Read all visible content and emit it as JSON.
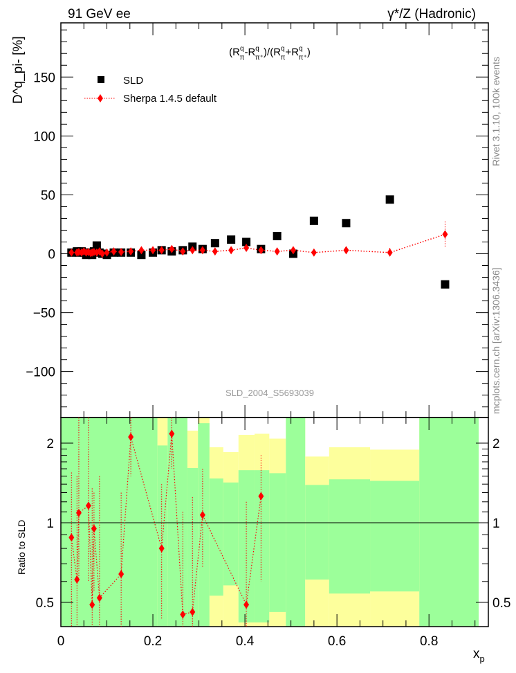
{
  "header": {
    "left": "91 GeV ee",
    "right": "γ*/Z (Hadronic)"
  },
  "side": {
    "rivet": "Rivet 3.1.10, 100k events",
    "mcplots": "mcplots.cern.ch [arXiv:1306.3436]"
  },
  "watermark": "SLD_2004_S5693039",
  "chart_data": [
    {
      "type": "scatter",
      "title": "(R^q_π-R^q_π+)/(R^q_π+R^q_π+)",
      "ylabel": "D^q_pi- [%]",
      "xlabel": "x_p",
      "xlim": [
        0,
        0.929
      ],
      "ylim": [
        -139,
        196
      ],
      "yticks": [
        -100,
        -50,
        0,
        50,
        100,
        150
      ],
      "yticklabels": [
        "−100",
        "−50",
        "0",
        "50",
        "100",
        "150"
      ],
      "legend": {
        "position": "top-left",
        "entries": [
          "SLD",
          "Sherpa 1.4.5 default"
        ]
      },
      "series": [
        {
          "name": "SLD",
          "color": "#000000",
          "marker": "square",
          "x": [
            0.023,
            0.035,
            0.039,
            0.045,
            0.05,
            0.055,
            0.06,
            0.065,
            0.068,
            0.072,
            0.078,
            0.084,
            0.09,
            0.1,
            0.115,
            0.131,
            0.152,
            0.175,
            0.2,
            0.219,
            0.241,
            0.265,
            0.286,
            0.308,
            0.335,
            0.37,
            0.403,
            0.435,
            0.47,
            0.505,
            0.55,
            0.62,
            0.715,
            0.835
          ],
          "y": [
            1,
            2,
            1,
            2,
            1,
            -1,
            1,
            0,
            -1,
            2,
            7,
            1,
            0,
            -1,
            1,
            1,
            1,
            -1,
            1,
            3,
            2,
            3,
            6,
            4,
            9,
            12,
            10,
            4,
            15,
            0,
            28,
            26,
            46,
            -26
          ]
        },
        {
          "name": "Sherpa 1.4.5 default",
          "color": "#ff0000",
          "marker": "diamond",
          "x": [
            0.023,
            0.035,
            0.039,
            0.045,
            0.05,
            0.055,
            0.06,
            0.065,
            0.068,
            0.072,
            0.078,
            0.084,
            0.09,
            0.1,
            0.115,
            0.131,
            0.152,
            0.175,
            0.2,
            0.219,
            0.241,
            0.265,
            0.286,
            0.308,
            0.335,
            0.37,
            0.403,
            0.435,
            0.47,
            0.505,
            0.55,
            0.62,
            0.715,
            0.835
          ],
          "y": [
            1,
            1,
            1.5,
            1,
            2,
            1,
            1.5,
            0.5,
            1,
            1.5,
            1,
            2,
            0,
            1,
            2,
            1.5,
            2,
            3,
            3,
            3,
            4,
            2,
            3,
            3,
            2,
            3,
            5,
            3,
            2,
            3,
            1,
            3,
            1,
            16.5
          ],
          "yerr": [
            1,
            1,
            1,
            1,
            1,
            1,
            1,
            1,
            1,
            1,
            1,
            1,
            1,
            1,
            1,
            1,
            1,
            1,
            1,
            1,
            1,
            1,
            1,
            1,
            1,
            1,
            1,
            1,
            1,
            1.5,
            2,
            3,
            4,
            11
          ]
        }
      ]
    },
    {
      "type": "scatter",
      "ylabel": "Ratio to SLD",
      "yscale": "log",
      "ylim": [
        0.405,
        2.5
      ],
      "yticks": [
        0.5,
        1,
        2
      ],
      "yticklabels": [
        "0.5",
        "1",
        "2"
      ],
      "xticks": [
        0,
        0.2,
        0.4,
        0.6,
        0.8
      ],
      "xticklabels": [
        "0",
        "0.2",
        "0.4",
        "0.6",
        "0.8"
      ],
      "xlabel": "x_p",
      "bands": [
        {
          "x": [
            0,
            0.21
          ],
          "y2": [
            0.405,
            2.5
          ],
          "y1": [
            0.405,
            2.5
          ]
        },
        {
          "x": [
            0.21,
            0.232
          ],
          "y2": [
            0.405,
            2.5
          ],
          "y1": [
            0.405,
            1.96
          ]
        },
        {
          "x": [
            0.232,
            0.275
          ],
          "y2": [
            0.405,
            2.5
          ],
          "y1": [
            0.405,
            2.5
          ]
        },
        {
          "x": [
            0.275,
            0.298
          ],
          "y2": [
            0.405,
            2.23
          ],
          "y1": [
            0.405,
            1.61
          ]
        },
        {
          "x": [
            0.298,
            0.323
          ],
          "y2": [
            0.405,
            2.5
          ],
          "y1": [
            0.405,
            2.38
          ]
        },
        {
          "x": [
            0.323,
            0.353
          ],
          "y2": [
            0.405,
            1.93
          ],
          "y1": [
            0.53,
            1.47
          ]
        },
        {
          "x": [
            0.353,
            0.386
          ],
          "y2": [
            0.405,
            1.85
          ],
          "y1": [
            0.58,
            1.42
          ]
        },
        {
          "x": [
            0.386,
            0.421
          ],
          "y2": [
            0.405,
            2.15
          ],
          "y1": [
            0.42,
            1.58
          ]
        },
        {
          "x": [
            0.421,
            0.453
          ],
          "y2": [
            0.405,
            2.17
          ],
          "y1": [
            0.42,
            1.58
          ]
        },
        {
          "x": [
            0.453,
            0.489
          ],
          "y2": [
            0.405,
            2.08
          ],
          "y1": [
            0.46,
            1.54
          ]
        },
        {
          "x": [
            0.489,
            0.531
          ],
          "y2": [
            0.405,
            2.5
          ],
          "y1": [
            0.405,
            2.5
          ]
        },
        {
          "x": [
            0.531,
            0.583
          ],
          "y2": [
            0.405,
            1.78
          ],
          "y1": [
            0.61,
            1.39
          ]
        },
        {
          "x": [
            0.583,
            0.672
          ],
          "y2": [
            0.405,
            1.93
          ],
          "y1": [
            0.54,
            1.46
          ]
        },
        {
          "x": [
            0.672,
            0.779
          ],
          "y2": [
            0.405,
            1.89
          ],
          "y1": [
            0.55,
            1.44
          ]
        },
        {
          "x": [
            0.779,
            0.908
          ],
          "y2": [
            0.405,
            2.5
          ],
          "y1": [
            0.405,
            2.5
          ]
        }
      ],
      "band_colors": {
        "one_sigma": "#9cff9a",
        "two_sigma": "#fdff9c"
      },
      "ratio": {
        "x": [
          0.023,
          0.035,
          0.039,
          0.06,
          0.068,
          0.072,
          0.084,
          0.131,
          0.152,
          0.219,
          0.241,
          0.265,
          0.286,
          0.308,
          0.403,
          0.435
        ],
        "y": [
          0.88,
          0.61,
          1.09,
          1.16,
          0.49,
          0.95,
          0.52,
          0.64,
          2.11,
          0.8,
          2.17,
          0.45,
          0.46,
          1.07,
          0.49,
          1.26
        ],
        "err_lo": [
          0.4,
          0.4,
          0.62,
          0.6,
          0.4,
          0.55,
          0.4,
          0.4,
          1.5,
          0.43,
          1.6,
          0.4,
          0.4,
          0.68,
          0.4,
          0.6
        ],
        "err_hi": [
          1.55,
          1.5,
          2.5,
          2.5,
          1.35,
          1.3,
          1.5,
          1.3,
          2.5,
          1.4,
          2.5,
          1.1,
          1.25,
          1.6,
          1.2,
          1.8
        ]
      }
    }
  ]
}
